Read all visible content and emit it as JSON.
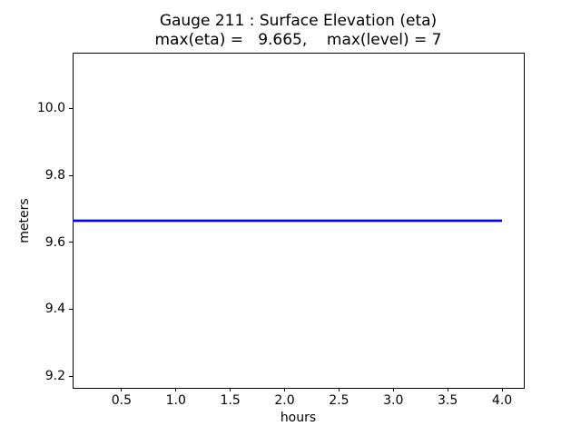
{
  "chart_data": {
    "type": "line",
    "title": "Gauge 211 : Surface Elevation (eta)",
    "subtitle": "max(eta) =   9.665,    max(level) = 7",
    "xlabel": "hours",
    "ylabel": "meters",
    "xlim": [
      0.05,
      4.2
    ],
    "ylim": [
      9.165,
      10.165
    ],
    "x_ticks": [
      0.5,
      1.0,
      1.5,
      2.0,
      2.5,
      3.0,
      3.5,
      4.0
    ],
    "x_tick_labels": [
      "0.5",
      "1.0",
      "1.5",
      "2.0",
      "2.5",
      "3.0",
      "3.5",
      "4.0"
    ],
    "y_ticks": [
      9.2,
      9.4,
      9.6,
      9.8,
      10.0
    ],
    "y_tick_labels": [
      "9.2",
      "9.4",
      "9.6",
      "9.8",
      "10.0"
    ],
    "grid": false,
    "legend": false,
    "series": [
      {
        "name": "surface-elevation-eta",
        "color": "#0000ff",
        "x": [
          0.05,
          4.0
        ],
        "y": [
          9.665,
          9.665
        ]
      }
    ],
    "annotations": {
      "max_eta": 9.665,
      "max_level": 7
    }
  },
  "colors": {
    "line": "#0000ff",
    "spine": "#000000",
    "text": "#000000",
    "background": "#ffffff"
  }
}
